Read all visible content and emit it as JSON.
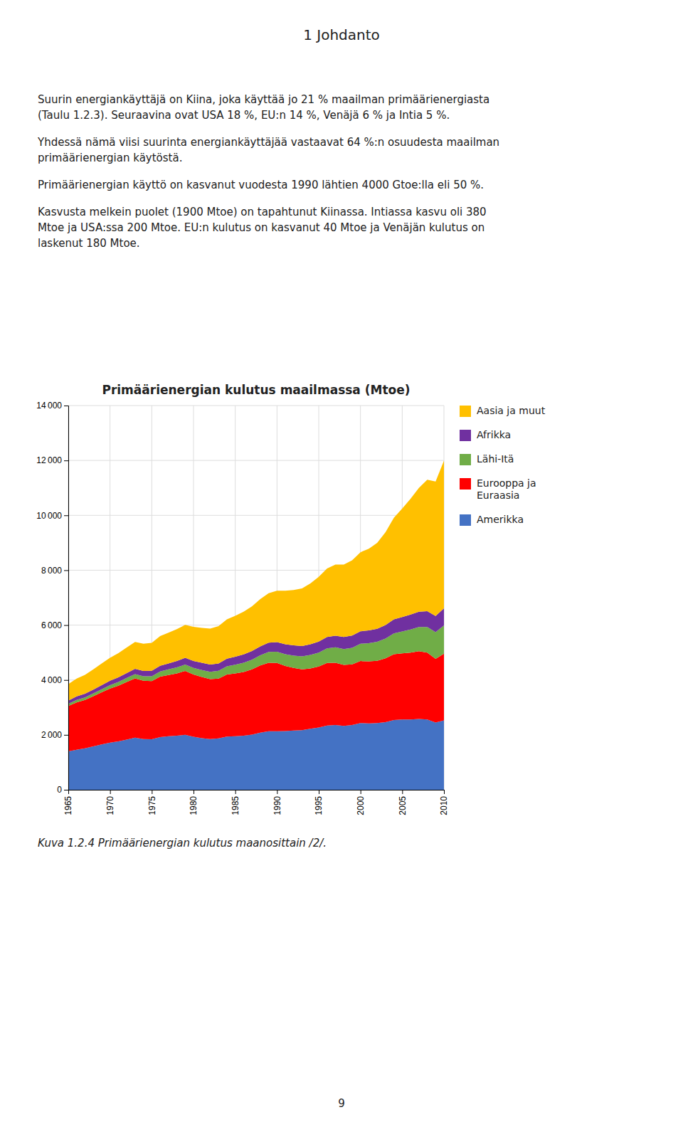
{
  "page_title": "1 Johdanto",
  "body_text": [
    "Suurin energiankäyttäjä on Kiina, joka käyttää jo 21 % maailman primäärienergiasta\n(Taulu 1.2.3). Seuraavina ovat USA 18 %, EU:n 14 %, Venäjä 6 % ja Intia 5 %.",
    "Yhdessä nämä viisi suurinta energiankäyttäjää vastaavat 64 %:n osuudesta maailman\nprimäärienergian käytöstä.",
    "Primäärienergian käyttö on kasvanut vuodesta 1990 lähtien 4000 Gtoe:lla eli 50 %.",
    "Kasvusta melkein puolet (1900 Mtoe) on tapahtunut Kiinassa. Intiassa kasvu oli 380\nMtoe ja USA:ssa 200 Mtoe. EU:n kulutus on kasvanut 40 Mtoe ja Venäjän kulutus on\nlaskenut 180 Mtoe."
  ],
  "caption": "Kuva 1.2.4 Primäärienergian kulutus maanosittain /2/.",
  "page_number": "9",
  "chart_data": {
    "type": "area",
    "stacked": true,
    "title": "Primäärienergian kulutus maailmassa (Mtoe)",
    "x": [
      1965,
      1966,
      1967,
      1968,
      1969,
      1970,
      1971,
      1972,
      1973,
      1974,
      1975,
      1976,
      1977,
      1978,
      1979,
      1980,
      1981,
      1982,
      1983,
      1984,
      1985,
      1986,
      1987,
      1988,
      1989,
      1990,
      1991,
      1992,
      1993,
      1994,
      1995,
      1996,
      1997,
      1998,
      1999,
      2000,
      2001,
      2002,
      2003,
      2004,
      2005,
      2006,
      2007,
      2008,
      2009,
      2010
    ],
    "series": [
      {
        "name": "Amerikka",
        "color": "#4472C4",
        "values": [
          1400,
          1460,
          1510,
          1580,
          1650,
          1720,
          1760,
          1830,
          1900,
          1850,
          1840,
          1920,
          1950,
          1970,
          2000,
          1930,
          1880,
          1850,
          1870,
          1940,
          1950,
          1970,
          2010,
          2080,
          2130,
          2130,
          2140,
          2160,
          2170,
          2220,
          2270,
          2340,
          2360,
          2330,
          2360,
          2430,
          2420,
          2430,
          2460,
          2540,
          2560,
          2560,
          2580,
          2560,
          2450,
          2530
        ]
      },
      {
        "name": "Eurooppa ja\nEuraasia",
        "color": "#FF0000",
        "values": [
          1650,
          1720,
          1760,
          1830,
          1900,
          1970,
          2030,
          2100,
          2160,
          2120,
          2120,
          2200,
          2230,
          2270,
          2330,
          2270,
          2230,
          2180,
          2180,
          2260,
          2290,
          2320,
          2380,
          2450,
          2500,
          2490,
          2370,
          2280,
          2220,
          2200,
          2220,
          2280,
          2270,
          2220,
          2210,
          2260,
          2260,
          2270,
          2330,
          2400,
          2410,
          2440,
          2470,
          2440,
          2320,
          2430
        ]
      },
      {
        "name": "Lähi-Itä",
        "color": "#70AD47",
        "values": [
          80,
          90,
          95,
          100,
          110,
          120,
          135,
          145,
          155,
          165,
          175,
          190,
          205,
          220,
          230,
          240,
          255,
          270,
          285,
          300,
          315,
          335,
          350,
          370,
          390,
          410,
          430,
          450,
          470,
          490,
          510,
          535,
          560,
          580,
          605,
          630,
          660,
          690,
          720,
          760,
          800,
          840,
          880,
          930,
          970,
          1030
        ]
      },
      {
        "name": "Afrikka",
        "color": "#7030A0",
        "values": [
          120,
          130,
          135,
          140,
          150,
          160,
          170,
          180,
          190,
          195,
          200,
          210,
          220,
          235,
          248,
          255,
          260,
          265,
          270,
          280,
          295,
          305,
          315,
          325,
          340,
          350,
          360,
          370,
          380,
          390,
          400,
          415,
          425,
          435,
          445,
          455,
          465,
          478,
          495,
          510,
          525,
          545,
          560,
          580,
          590,
          620
        ]
      },
      {
        "name": "Aasia ja muut",
        "color": "#FFC000",
        "values": [
          600,
          650,
          690,
          740,
          790,
          840,
          880,
          930,
          980,
          990,
          1020,
          1080,
          1120,
          1160,
          1200,
          1240,
          1270,
          1310,
          1360,
          1430,
          1490,
          1560,
          1630,
          1720,
          1800,
          1870,
          1950,
          2020,
          2100,
          2220,
          2360,
          2490,
          2590,
          2640,
          2740,
          2880,
          2980,
          3130,
          3380,
          3700,
          3950,
          4220,
          4510,
          4790,
          4900,
          5380
        ]
      }
    ],
    "xlim": [
      1965,
      2010
    ],
    "xticks": [
      1965,
      1970,
      1975,
      1980,
      1985,
      1990,
      1995,
      2000,
      2005,
      2010
    ],
    "ylim": [
      0,
      14000
    ],
    "yticks": [
      0,
      {
        "value": 2000,
        "label": "2 000"
      },
      {
        "value": 4000,
        "label": "4 000"
      },
      {
        "value": 6000,
        "label": "6 000"
      },
      {
        "value": 8000,
        "label": "8 000"
      },
      {
        "value": 10000,
        "label": "10 000"
      },
      {
        "value": 12000,
        "label": "12 000"
      },
      {
        "value": 14000,
        "label": "14 000"
      }
    ],
    "grid": true,
    "legend": "right"
  }
}
